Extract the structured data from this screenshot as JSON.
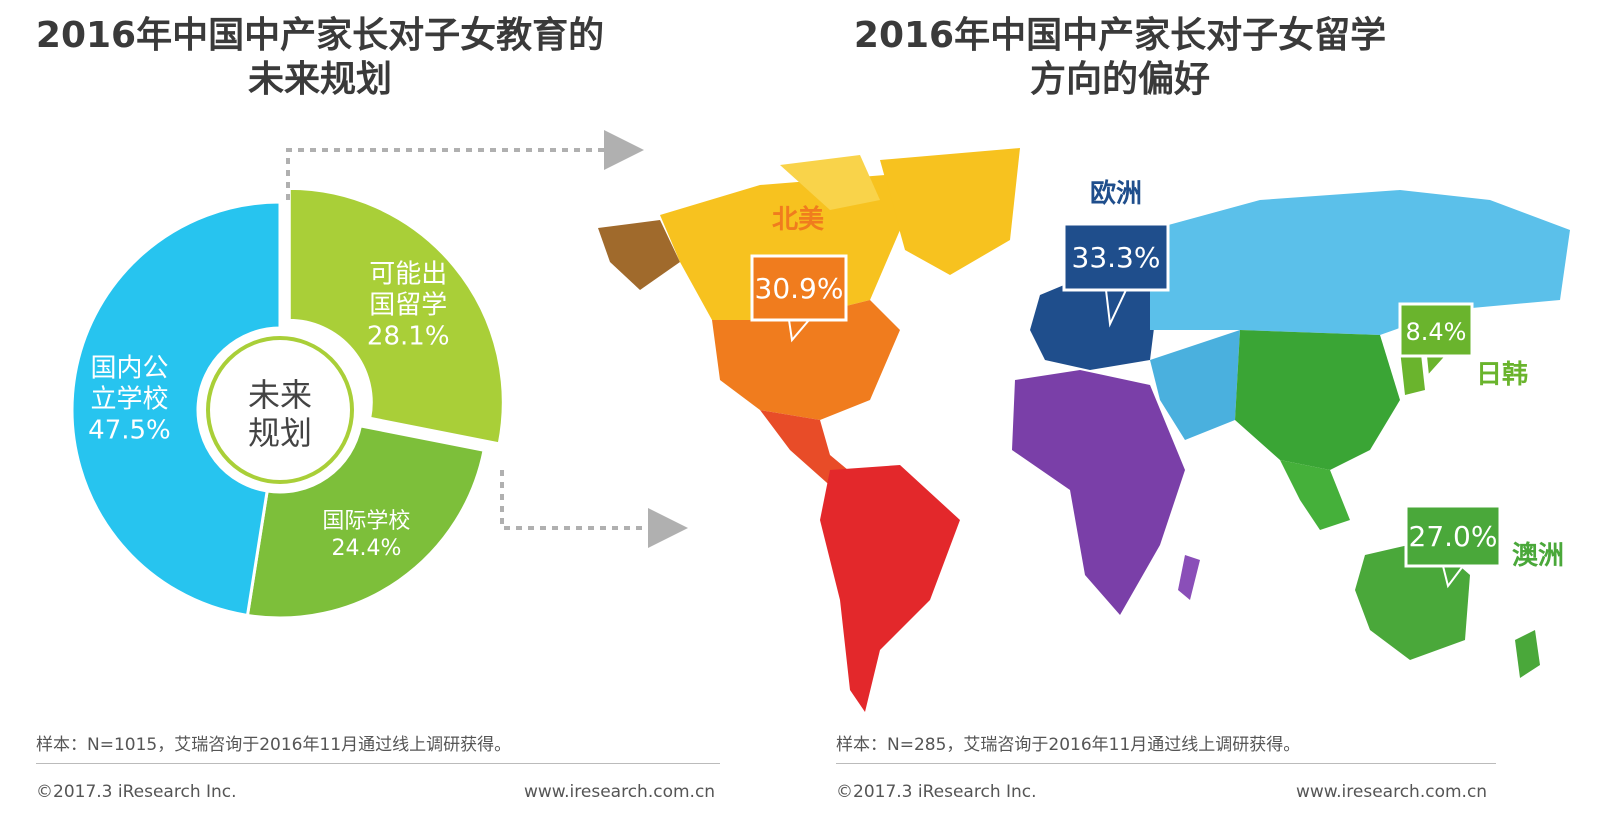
{
  "left_panel": {
    "title_line1": "2016年中国中产家长对子女教育的",
    "title_line2": "未来规划",
    "center_label_line1": "未来",
    "center_label_line2": "规划",
    "note": "样本：N=1015，艾瑞咨询于2016年11月通过线上调研获得。",
    "copyright": "©2017.3  iResearch Inc.",
    "website": "www.iresearch.com.cn"
  },
  "right_panel": {
    "title_line1": "2016年中国中产家长对子女留学",
    "title_line2": "方向的偏好",
    "note": "样本：N=285，艾瑞咨询于2016年11月通过线上调研获得。",
    "copyright": "©2017.3  iResearch Inc.",
    "website": "www.iresearch.com.cn"
  },
  "chart_data": [
    {
      "type": "pie",
      "variant": "donut",
      "title": "2016年中国中产家长对子女教育的未来规划",
      "categories": [
        "可能出国留学",
        "国际学校",
        "国内公立学校"
      ],
      "label_lines": [
        [
          "可能出",
          "国留学"
        ],
        [
          "国际学校"
        ],
        [
          "国内公",
          "立学校"
        ]
      ],
      "values": [
        28.1,
        24.4,
        47.5
      ],
      "value_labels": [
        "28.1%",
        "24.4%",
        "47.5%"
      ],
      "colors": [
        "#a9cf38",
        "#7dbf3a",
        "#27c4ef"
      ],
      "exploded": "可能出国留学"
    },
    {
      "type": "other",
      "variant": "map-callouts",
      "title": "2016年中国中产家长对子女留学方向的偏好",
      "categories": [
        "北美",
        "欧洲",
        "日韩",
        "澳洲"
      ],
      "values": [
        30.9,
        33.3,
        8.4,
        27.0
      ],
      "value_labels": [
        "30.9%",
        "33.3%",
        "8.4%",
        "27.0%"
      ],
      "colors": {
        "北美": "#f07c1e",
        "欧洲": "#1f4e8c",
        "日韩": "#6ab42d",
        "澳洲": "#4aa83a",
        "north_america_land": "#f7c21f",
        "south_america_land": "#e3282b",
        "africa_land": "#7a3fa8",
        "asia_land": "#5bc0ea"
      }
    }
  ]
}
